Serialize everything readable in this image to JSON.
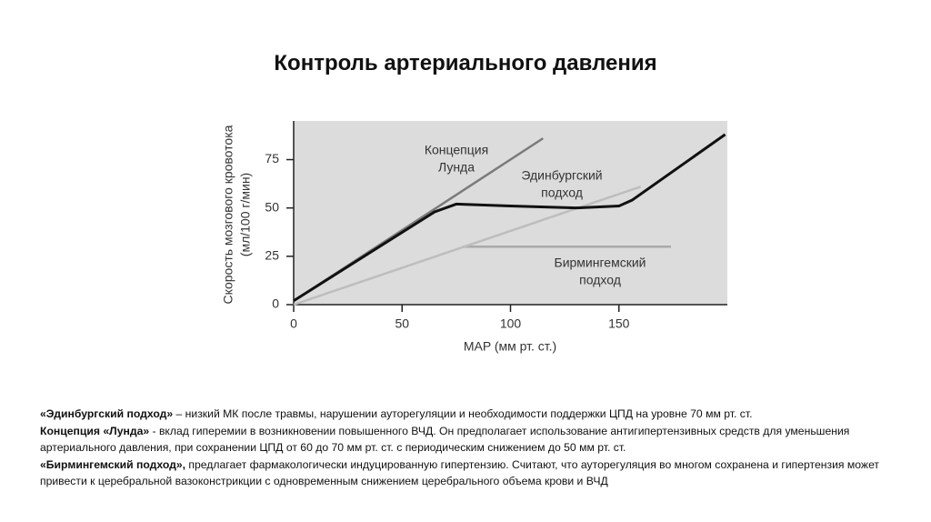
{
  "title": "Контроль артериального давления",
  "chart_data": {
    "type": "line",
    "ylabel": [
      "Скорость мозгового кровотока",
      "(мл/100 г/мин)"
    ],
    "xlabel": "MAP (мм рт. ст.)",
    "xlim": [
      0,
      200
    ],
    "xticks": [
      0,
      50,
      100,
      150
    ],
    "ylim": [
      0,
      95
    ],
    "yticks": [
      0,
      25,
      50,
      75
    ],
    "background": "#dcdcdc",
    "series": [
      {
        "color": "#a9a9a9",
        "x": [
          78,
          174
        ],
        "values": [
          30,
          30
        ]
      },
      {
        "color": "#bdbdbd",
        "x": [
          0,
          160
        ],
        "values": [
          0,
          61
        ]
      },
      {
        "color": "#7a7a7a",
        "x": [
          0,
          115
        ],
        "values": [
          2,
          86
        ]
      },
      {
        "color": "#111111",
        "x": [
          0,
          65,
          75,
          100,
          130,
          150,
          156,
          199
        ],
        "values": [
          2,
          48,
          52,
          51,
          50,
          51,
          54,
          88
        ]
      }
    ],
    "annotations": [
      [
        "Концепция",
        "Лунда"
      ],
      [
        "Эдинбургский",
        "подход"
      ],
      [
        "Бирмингемский",
        "подход"
      ]
    ]
  },
  "notes": [
    {
      "term": "«Эдинбургский подход»",
      "text": " – низкий  МК после травмы, нарушении ауторегуляции и необходимости поддержки ЦПД на уровне 70 мм рт. ст."
    },
    {
      "term": "Концепция «Лунда»",
      "text": " - вклад гиперемии в возникновении повышенного ВЧД. Он предполагает использование антигипертензивных средств для уменьшения артериального давления, при сохранении ЦПД от 60 до 70 мм рт.   ст. с периодическим снижением до 50 мм рт. ст."
    },
    {
      "term": " «Бирмингемский подход»,",
      "text": " предлагает фармакологически индуцированную гипертензию. Считают, что ауторегуляция во многом сохранена и гипертензия может привести к церебральной вазоконстрикции с одновременным снижением церебрального объема крови и ВЧД"
    }
  ]
}
